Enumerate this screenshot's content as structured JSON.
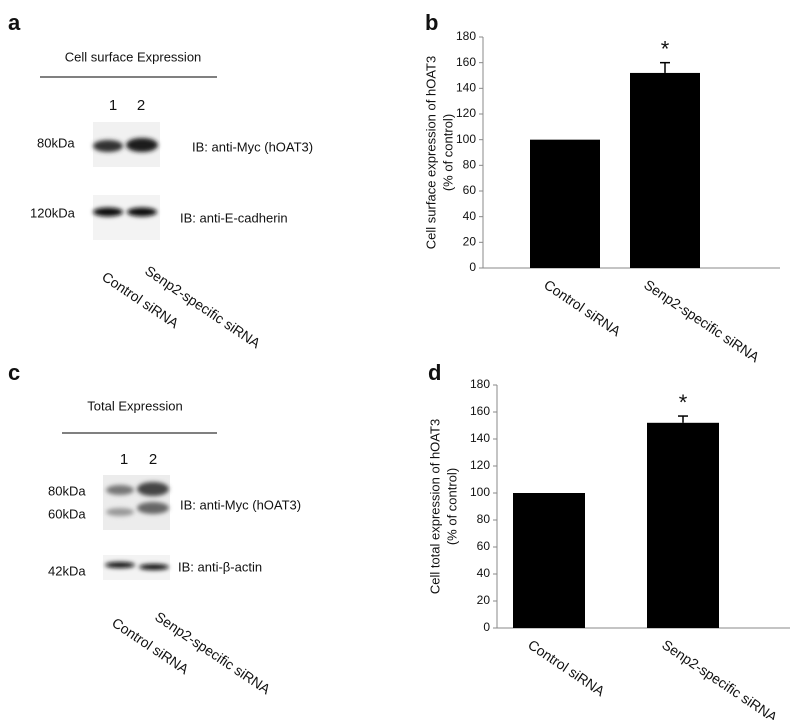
{
  "blots": [
    {
      "panel": "a",
      "heading": "Cell surface Expression",
      "lanes": [
        "1",
        "2"
      ],
      "rows": [
        {
          "sizes": [
            "80kDa"
          ],
          "label": "IB: anti-Myc (hOAT3)"
        },
        {
          "sizes": [
            "120kDa"
          ],
          "label": "IB: anti-E-cadherin"
        }
      ],
      "samples": [
        "Control siRNA",
        "Senp2-specific siRNA"
      ]
    },
    {
      "panel": "c",
      "heading": "Total Expression",
      "lanes": [
        "1",
        "2"
      ],
      "rows": [
        {
          "sizes": [
            "80kDa",
            "60kDa"
          ],
          "label": "IB: anti-Myc (hOAT3)"
        },
        {
          "sizes": [
            "42kDa"
          ],
          "label": "IB: anti-β-actin"
        }
      ],
      "samples": [
        "Control siRNA",
        "Senp2-specific siRNA"
      ]
    }
  ],
  "chart_data": [
    {
      "type": "bar",
      "panel": "b",
      "ylabel": [
        "Cell surface expression of hOAT3",
        "(% of control)"
      ],
      "categories": [
        "Control siRNA",
        "Senp2-specific siRNA"
      ],
      "values": [
        100,
        152
      ],
      "errors": [
        null,
        8
      ],
      "significance": [
        null,
        "*"
      ],
      "color": "#000000",
      "ylim": [
        0,
        180
      ],
      "yticks": [
        0,
        20,
        40,
        60,
        80,
        100,
        120,
        140,
        160,
        180
      ]
    },
    {
      "type": "bar",
      "panel": "d",
      "ylabel": [
        "Cell total expression of hOAT3",
        "(% of control)"
      ],
      "categories": [
        "Control siRNA",
        "Senp2-specific siRNA"
      ],
      "values": [
        100,
        152
      ],
      "errors": [
        null,
        5
      ],
      "significance": [
        null,
        "*"
      ],
      "color": "#000000",
      "ylim": [
        0,
        180
      ],
      "yticks": [
        0,
        20,
        40,
        60,
        80,
        100,
        120,
        140,
        160,
        180
      ]
    }
  ]
}
